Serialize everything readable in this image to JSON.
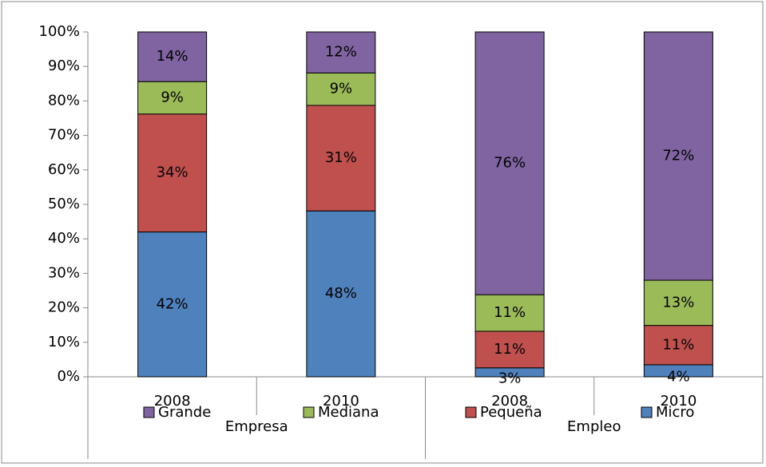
{
  "chart_data": {
    "type": "stacked_bar",
    "categories": [
      "2008",
      "2010",
      "2008",
      "2010"
    ],
    "groups": [
      "Empresa",
      "Empleo"
    ],
    "series": [
      {
        "name": "Micro",
        "color": "#4f81bd",
        "values": [
          42,
          48.1,
          2.6,
          3.5
        ],
        "value_labels": [
          "42%",
          "48%",
          "3%",
          "4%"
        ]
      },
      {
        "name": "Pequeña",
        "color": "#c0504d",
        "values": [
          34.2,
          30.6,
          10.6,
          11.4
        ],
        "value_labels": [
          "34%",
          "31%",
          "11%",
          "11%"
        ]
      },
      {
        "name": "Mediana",
        "color": "#9bbb59",
        "values": [
          9.4,
          9.4,
          10.6,
          13.1
        ],
        "value_labels": [
          "9%",
          "9%",
          "11%",
          "13%"
        ]
      },
      {
        "name": "Grande",
        "color": "#8064a2",
        "values": [
          14.4,
          11.9,
          76.2,
          72
        ],
        "value_labels": [
          "14%",
          "12%",
          "76%",
          "72%"
        ]
      }
    ],
    "ylim": [
      0,
      100
    ],
    "yticks": [
      {
        "value": 0,
        "label": "0%"
      },
      {
        "value": 10,
        "label": "10%"
      },
      {
        "value": 20,
        "label": "20%"
      },
      {
        "value": 30,
        "label": "30%"
      },
      {
        "value": 40,
        "label": "40%"
      },
      {
        "value": 50,
        "label": "50%"
      },
      {
        "value": 60,
        "label": "60%"
      },
      {
        "value": 70,
        "label": "70%"
      },
      {
        "value": 80,
        "label": "80%"
      },
      {
        "value": 90,
        "label": "90%"
      },
      {
        "value": 100,
        "label": "100%"
      }
    ],
    "grid": false
  }
}
